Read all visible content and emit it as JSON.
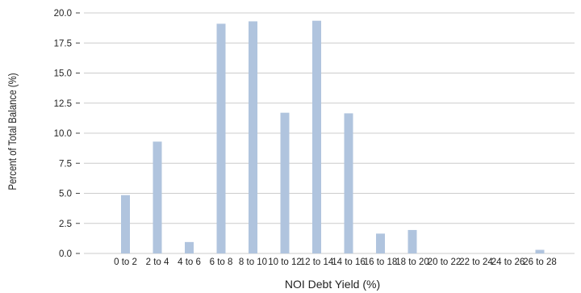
{
  "chart_data": {
    "type": "bar",
    "title": "",
    "xlabel": "NOI Debt Yield (%)",
    "ylabel": "Percent of Total Balance (%)",
    "categories": [
      "0 to 2",
      "2 to 4",
      "4 to 6",
      "6 to 8",
      "8 to 10",
      "10 to 12",
      "12 to 14",
      "14 to 16",
      "16 to 18",
      "18 to 20",
      "20 to 22",
      "22 to 24",
      "24 to 26",
      "26 to 28"
    ],
    "values": [
      4.85,
      9.3,
      0.95,
      19.1,
      19.3,
      11.7,
      19.35,
      11.65,
      1.65,
      1.95,
      0,
      0,
      0,
      0.3
    ],
    "ylim": [
      0,
      20
    ],
    "yticks": [
      "0.0",
      "2.5",
      "5.0",
      "7.5",
      "10.0",
      "12.5",
      "15.0",
      "17.5",
      "20.0"
    ],
    "grid": true,
    "bar_color": "#b0c4de",
    "grid_color": "#cccccc"
  }
}
